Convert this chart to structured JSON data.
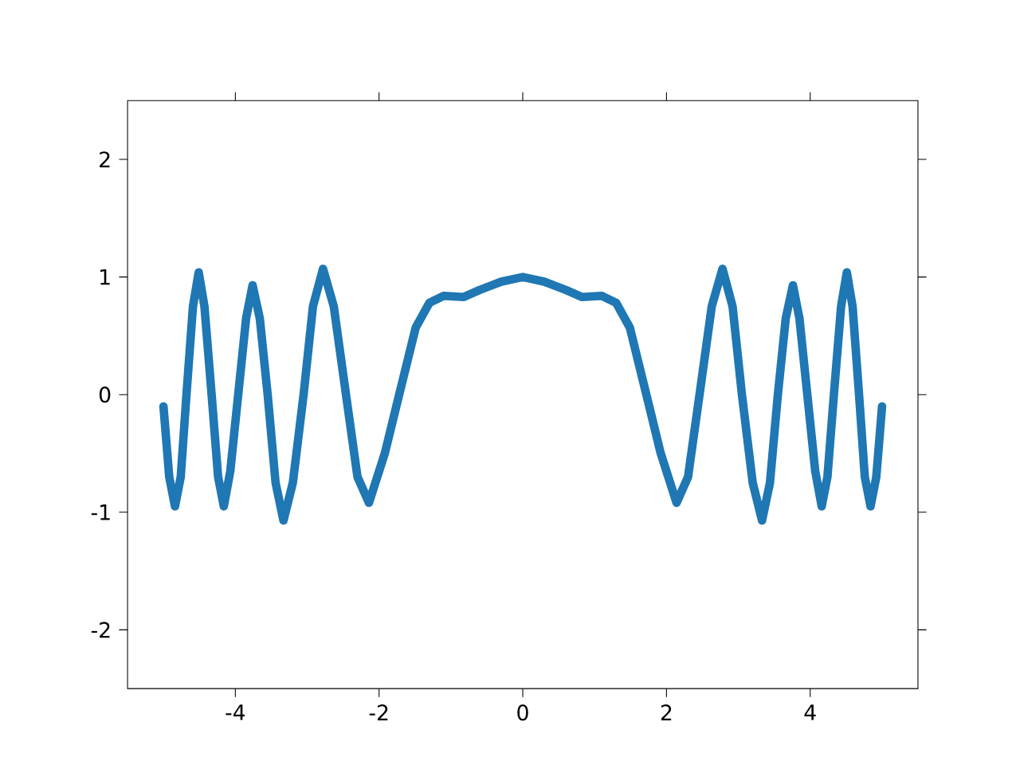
{
  "chart_data": {
    "type": "line",
    "color": "#1f77b4",
    "x": [
      -5.0,
      -4.92,
      -4.84,
      -4.76,
      -4.68,
      -4.59,
      -4.51,
      -4.43,
      -4.33,
      -4.24,
      -4.16,
      -4.07,
      -3.96,
      -3.85,
      -3.76,
      -3.66,
      -3.55,
      -3.44,
      -3.33,
      -3.2,
      -3.05,
      -2.92,
      -2.78,
      -2.63,
      -2.46,
      -2.3,
      -2.14,
      -1.92,
      -1.72,
      -1.49,
      -1.3,
      -1.1,
      -0.82,
      -0.6,
      -0.3,
      0.0,
      0.3,
      0.6,
      0.82,
      1.1,
      1.3,
      1.49,
      1.72,
      1.92,
      2.14,
      2.3,
      2.46,
      2.63,
      2.78,
      2.92,
      3.05,
      3.2,
      3.33,
      3.44,
      3.55,
      3.66,
      3.76,
      3.85,
      3.96,
      4.07,
      4.16,
      4.24,
      4.33,
      4.43,
      4.51,
      4.59,
      4.68,
      4.76,
      4.84,
      4.92,
      5.0
    ],
    "values": [
      -0.1,
      -0.7,
      -0.95,
      -0.7,
      0.0,
      0.75,
      1.04,
      0.75,
      0.0,
      -0.7,
      -0.95,
      -0.65,
      0.0,
      0.65,
      0.93,
      0.65,
      0.0,
      -0.75,
      -1.07,
      -0.75,
      0.0,
      0.75,
      1.07,
      0.75,
      0.0,
      -0.7,
      -0.92,
      -0.5,
      0.0,
      0.57,
      0.78,
      0.84,
      0.83,
      0.89,
      0.96,
      1.0,
      0.96,
      0.89,
      0.83,
      0.84,
      0.78,
      0.57,
      0.0,
      -0.5,
      -0.92,
      -0.7,
      0.0,
      0.75,
      1.07,
      0.75,
      0.0,
      -0.75,
      -1.07,
      -0.75,
      0.0,
      0.65,
      0.93,
      0.65,
      0.0,
      -0.65,
      -0.95,
      -0.7,
      0.0,
      0.75,
      1.04,
      0.75,
      0.0,
      -0.7,
      -0.95,
      -0.7,
      -0.1
    ],
    "xlim": [
      -5.5,
      5.5
    ],
    "ylim": [
      -2.5,
      2.5
    ],
    "xticks": [
      -4,
      -2,
      0,
      2,
      4
    ],
    "yticks": [
      -2,
      -1,
      0,
      1,
      2
    ],
    "grid": false,
    "marker": "none",
    "line_style": "solid"
  }
}
